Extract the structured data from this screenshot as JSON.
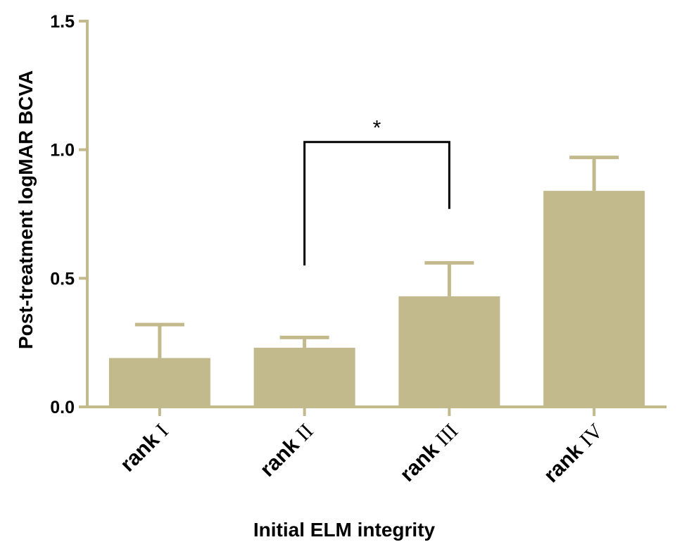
{
  "chart_data": {
    "type": "bar",
    "categories": [
      {
        "prefix": "rank",
        "numeral": "I"
      },
      {
        "prefix": "rank",
        "numeral": "II"
      },
      {
        "prefix": "rank",
        "numeral": "III"
      },
      {
        "prefix": "rank",
        "numeral": "IV"
      }
    ],
    "values": [
      0.19,
      0.23,
      0.43,
      0.84
    ],
    "error_upper": [
      0.32,
      0.27,
      0.56,
      0.97
    ],
    "xlabel": "Initial ELM integrity",
    "ylabel": "Post-treatment logMAR BCVA",
    "ylim": [
      0,
      1.5
    ],
    "yticks": [
      "0.0",
      "0.5",
      "1.0",
      "1.5"
    ],
    "grid": false,
    "colors": {
      "bar": "#c2b98c",
      "axis": "#c2b98c",
      "bracket": "#000000"
    },
    "significance": [
      {
        "from_category": 1,
        "to_category": 2,
        "label": "*"
      }
    ]
  }
}
